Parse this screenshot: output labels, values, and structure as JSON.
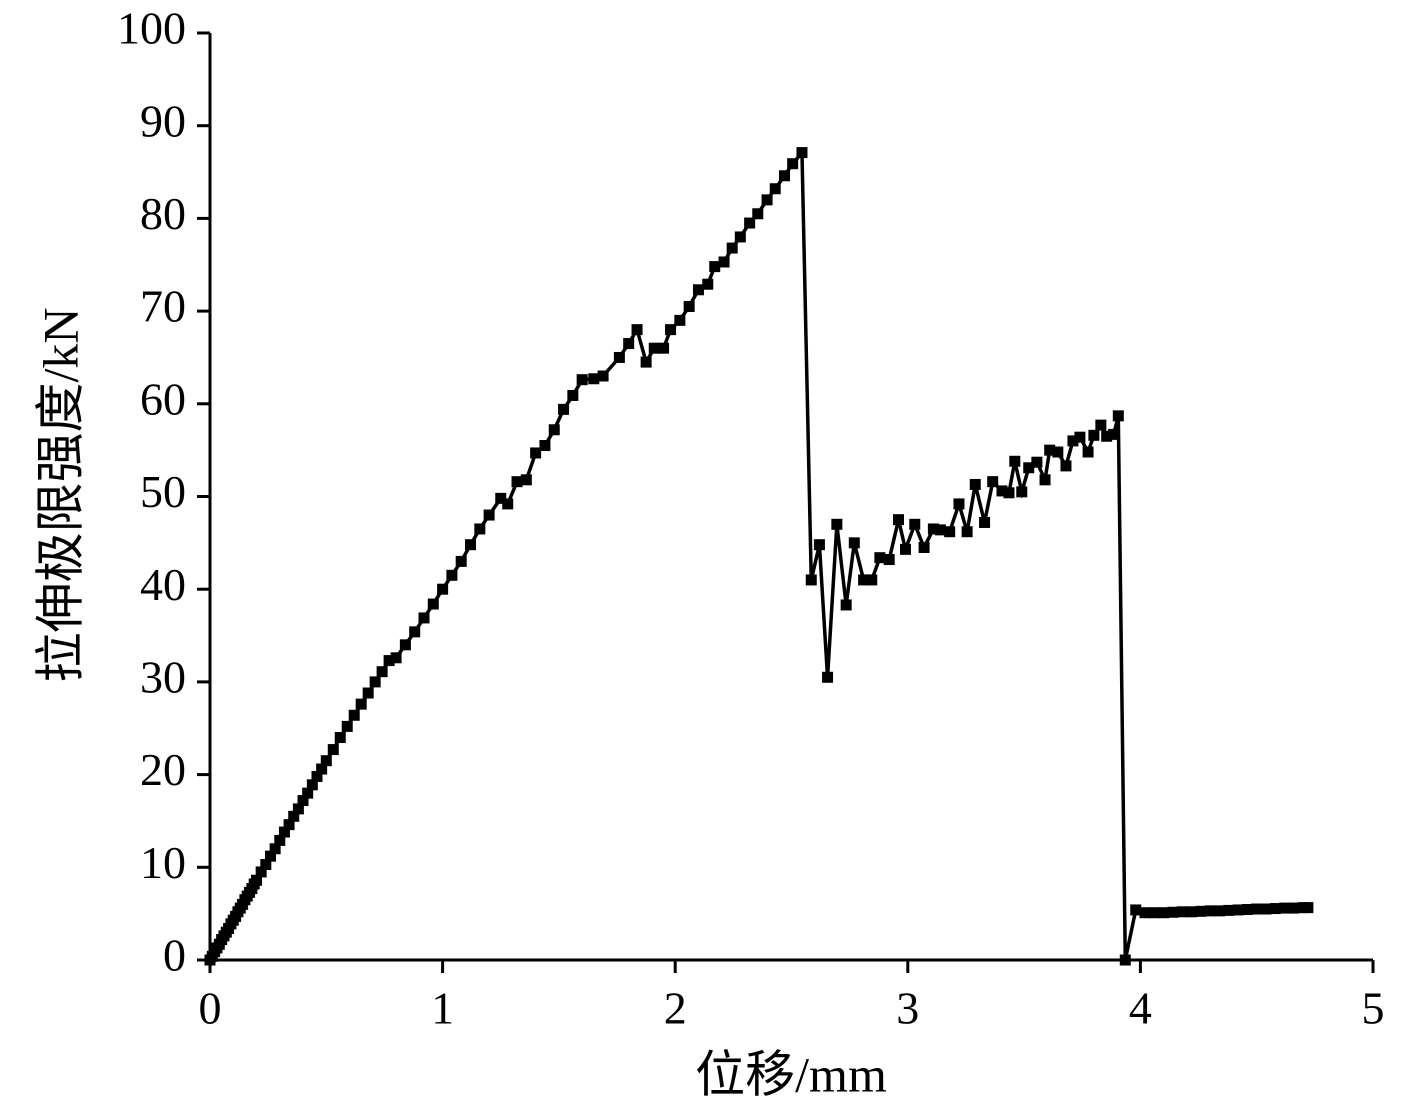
{
  "chart_data": {
    "type": "line",
    "xlabel": "位移/mm",
    "ylabel": "拉伸极限强度/kN",
    "color": "#000000",
    "marker": "square",
    "xlim": [
      0,
      5
    ],
    "xticks": [
      0,
      1,
      2,
      3,
      4,
      5
    ],
    "ylim": [
      0,
      100
    ],
    "yticks": [
      0,
      10,
      20,
      30,
      40,
      50,
      60,
      70,
      80,
      90,
      100
    ],
    "x": [
      0,
      0.01,
      0.02,
      0.03,
      0.04,
      0.05,
      0.06,
      0.07,
      0.08,
      0.09,
      0.1,
      0.11,
      0.12,
      0.13,
      0.14,
      0.15,
      0.16,
      0.17,
      0.18,
      0.19,
      0.2,
      0.22,
      0.24,
      0.26,
      0.28,
      0.3,
      0.32,
      0.34,
      0.36,
      0.38,
      0.4,
      0.42,
      0.44,
      0.46,
      0.48,
      0.5,
      0.53,
      0.56,
      0.59,
      0.62,
      0.65,
      0.68,
      0.71,
      0.74,
      0.77,
      0.8,
      0.84,
      0.88,
      0.92,
      0.96,
      1.0,
      1.04,
      1.08,
      1.12,
      1.16,
      1.2,
      1.25,
      1.28,
      1.32,
      1.36,
      1.4,
      1.44,
      1.48,
      1.52,
      1.56,
      1.6,
      1.65,
      1.69,
      1.76,
      1.8,
      1.836,
      1.875,
      1.91,
      1.95,
      1.98,
      2.02,
      2.06,
      2.1,
      2.14,
      2.17,
      2.21,
      2.245,
      2.28,
      2.32,
      2.355,
      2.395,
      2.43,
      2.47,
      2.505,
      2.545,
      2.585,
      2.62,
      2.655,
      2.695,
      2.735,
      2.77,
      2.81,
      2.845,
      2.88,
      2.92,
      2.96,
      2.99,
      3.03,
      3.07,
      3.11,
      3.14,
      3.18,
      3.22,
      3.255,
      3.29,
      3.33,
      3.365,
      3.405,
      3.435,
      3.46,
      3.49,
      3.52,
      3.555,
      3.59,
      3.61,
      3.645,
      3.68,
      3.71,
      3.74,
      3.775,
      3.8,
      3.83,
      3.855,
      3.885,
      3.905,
      3.935,
      3.98,
      4.02,
      4.06,
      4.1,
      4.14,
      4.18,
      4.22,
      4.26,
      4.3,
      4.34,
      4.38,
      4.42,
      4.46,
      4.5,
      4.54,
      4.58,
      4.62,
      4.66,
      4.7,
      4.72
    ],
    "values": [
      0,
      0.4,
      0.9,
      1.3,
      1.7,
      2.2,
      2.6,
      3,
      3.4,
      3.9,
      4.3,
      4.7,
      5.2,
      5.6,
      6,
      6.5,
      6.9,
      7.3,
      7.7,
      8.2,
      8.6,
      9.5,
      10.3,
      11.2,
      12,
      12.9,
      13.8,
      14.6,
      15.5,
      16.3,
      17.2,
      18,
      18.9,
      19.8,
      20.6,
      21.5,
      22.7,
      24,
      25.2,
      26.4,
      27.6,
      28.8,
      30,
      31.1,
      32.3,
      32.6,
      34,
      35.4,
      36.9,
      38.4,
      40,
      41.5,
      43,
      44.8,
      46.5,
      48,
      49.8,
      49.2,
      51.6,
      51.8,
      54.7,
      55.5,
      57.2,
      59.4,
      60.9,
      62.6,
      62.7,
      63,
      65,
      66.5,
      68,
      64.5,
      66,
      66,
      68,
      69,
      70.5,
      72.3,
      72.9,
      74.8,
      75.3,
      76.8,
      78,
      79.5,
      80.5,
      82,
      83.2,
      84.6,
      85.9,
      87.1,
      41,
      44.8,
      30.5,
      47,
      38.3,
      45,
      41,
      41,
      43.4,
      43.2,
      47.5,
      44.3,
      47,
      44.5,
      46.5,
      46.4,
      46.2,
      49.2,
      46.2,
      51.3,
      47.2,
      51.6,
      50.6,
      50.4,
      53.8,
      50.5,
      53.1,
      53.7,
      51.8,
      55,
      54.8,
      53.3,
      56,
      56.4,
      54.8,
      56.6,
      57.7,
      56.5,
      56.7,
      58.7,
      0,
      5.4,
      5.1,
      5.1,
      5.1,
      5.15,
      5.2,
      5.2,
      5.25,
      5.3,
      5.3,
      5.35,
      5.4,
      5.45,
      5.5,
      5.5,
      5.55,
      5.6,
      5.6,
      5.65,
      5.65
    ]
  }
}
